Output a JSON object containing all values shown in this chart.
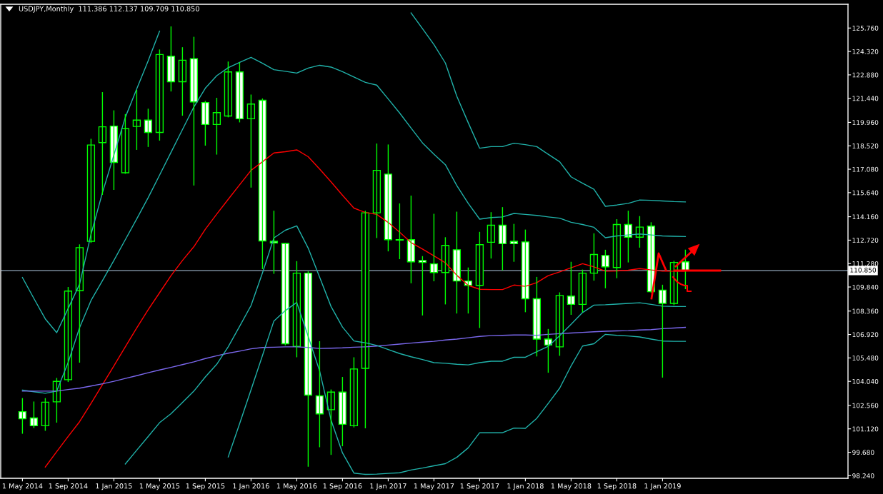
{
  "chart_data": {
    "type": "candlestick",
    "title": "USDJPY,Monthly  111.386 112.137 109.709 110.850",
    "categories": [
      "1 May 2014",
      null,
      null,
      null,
      "1 Sep 2014",
      null,
      null,
      null,
      "1 Jan 2015",
      null,
      null,
      null,
      "1 May 2015",
      null,
      null,
      null,
      "1 Sep 2015",
      null,
      null,
      null,
      "1 Jan 2016",
      null,
      null,
      null,
      "1 May 2016",
      null,
      null,
      null,
      "1 Sep 2016",
      null,
      null,
      null,
      "1 Jan 2017",
      null,
      null,
      null,
      "1 May 2017",
      null,
      null,
      null,
      "1 Sep 2017",
      null,
      null,
      null,
      "1 Jan 2018",
      null,
      null,
      null,
      "1 May 2018",
      null,
      null,
      null,
      "1 Sep 2018",
      null,
      null,
      null,
      "1 Jan 2019",
      null,
      null
    ],
    "color": "#00ff00",
    "ohlc": [
      [
        102.18,
        103.01,
        100.82,
        101.74
      ],
      [
        101.79,
        102.8,
        101.17,
        101.31
      ],
      [
        101.31,
        103.01,
        101.0,
        102.76
      ],
      [
        102.78,
        104.25,
        101.5,
        104.04
      ],
      [
        104.14,
        109.84,
        104.0,
        109.59
      ],
      [
        109.61,
        112.46,
        105.19,
        112.26
      ],
      [
        112.65,
        118.95,
        112.55,
        118.57
      ],
      [
        118.72,
        121.82,
        115.5,
        119.69
      ],
      [
        119.73,
        120.7,
        115.81,
        117.5
      ],
      [
        116.86,
        120.47,
        116.8,
        119.57
      ],
      [
        119.71,
        121.96,
        118.27,
        120.1
      ],
      [
        120.1,
        120.8,
        118.45,
        119.34
      ],
      [
        119.34,
        124.44,
        118.84,
        124.13
      ],
      [
        124.03,
        125.86,
        121.86,
        122.46
      ],
      [
        122.46,
        124.58,
        120.37,
        123.78
      ],
      [
        123.88,
        125.22,
        116.08,
        121.22
      ],
      [
        121.18,
        121.28,
        118.53,
        119.83
      ],
      [
        119.83,
        121.47,
        117.98,
        120.56
      ],
      [
        120.35,
        123.7,
        120.27,
        123.06
      ],
      [
        123.06,
        123.65,
        119.96,
        120.18
      ],
      [
        120.18,
        121.67,
        115.95,
        121.09
      ],
      [
        121.32,
        121.43,
        110.94,
        112.67
      ],
      [
        112.65,
        114.53,
        110.65,
        112.55
      ],
      [
        112.52,
        112.55,
        106.25,
        106.35
      ],
      [
        106.19,
        111.43,
        105.52,
        110.69
      ],
      [
        110.69,
        110.81,
        98.79,
        103.19
      ],
      [
        103.15,
        106.51,
        99.99,
        102.04
      ],
      [
        102.3,
        103.54,
        99.52,
        103.38
      ],
      [
        103.38,
        104.31,
        100.05,
        101.4
      ],
      [
        101.31,
        105.52,
        101.21,
        104.8
      ],
      [
        104.84,
        114.53,
        101.15,
        114.4
      ],
      [
        114.4,
        118.66,
        112.85,
        117.01
      ],
      [
        116.78,
        118.6,
        112.03,
        112.75
      ],
      [
        112.75,
        114.98,
        111.55,
        112.72
      ],
      [
        112.75,
        115.46,
        110.07,
        111.39
      ],
      [
        111.47,
        111.74,
        108.09,
        111.35
      ],
      [
        111.26,
        114.34,
        110.19,
        110.73
      ],
      [
        110.73,
        112.9,
        108.77,
        112.4
      ],
      [
        112.13,
        114.47,
        108.21,
        110.21
      ],
      [
        110.21,
        111.04,
        108.21,
        109.94
      ],
      [
        109.94,
        113.23,
        107.32,
        112.44
      ],
      [
        112.59,
        114.44,
        111.59,
        113.64
      ],
      [
        113.64,
        114.75,
        110.87,
        112.5
      ],
      [
        112.65,
        113.72,
        111.39,
        112.5
      ],
      [
        112.61,
        113.37,
        108.29,
        109.12
      ],
      [
        109.12,
        110.46,
        105.57,
        106.64
      ],
      [
        106.64,
        107.26,
        104.57,
        106.27
      ],
      [
        106.16,
        109.51,
        105.61,
        109.32
      ],
      [
        109.28,
        111.39,
        108.13,
        108.77
      ],
      [
        108.77,
        110.91,
        108.29,
        110.69
      ],
      [
        110.69,
        113.14,
        110.23,
        111.84
      ],
      [
        111.78,
        112.13,
        109.76,
        111.08
      ],
      [
        111.04,
        114.01,
        110.38,
        113.68
      ],
      [
        113.68,
        114.53,
        111.35,
        112.9
      ],
      [
        112.9,
        114.2,
        112.26,
        113.52
      ],
      [
        113.58,
        113.82,
        109.5,
        109.55
      ],
      [
        109.65,
        109.98,
        104.27,
        108.83
      ],
      [
        108.83,
        111.45,
        108.72,
        111.35
      ],
      [
        111.386,
        112.137,
        109.709,
        110.85
      ]
    ],
    "series": [
      {
        "type": "line",
        "color": "#20b2aa",
        "values": [
          110.42,
          109.14,
          107.88,
          107.03,
          108.52,
          110.01,
          113.08,
          115.64,
          117.95,
          120.27,
          122.02,
          123.74,
          125.57,
          null,
          null,
          null,
          null,
          null,
          null,
          null,
          null,
          null,
          null,
          null,
          null,
          null,
          null,
          null,
          null,
          null,
          null,
          null,
          null,
          null,
          126.69,
          125.72,
          124.75,
          123.61,
          121.57,
          119.94,
          118.37,
          118.47,
          118.47,
          118.68,
          118.59,
          118.47,
          118.0,
          117.54,
          116.61,
          116.22,
          115.85,
          114.8,
          114.88,
          114.98,
          115.19,
          115.17,
          115.13,
          115.09,
          115.07
        ]
      },
      {
        "type": "line",
        "color": "#20b2aa",
        "values": [
          103.5,
          103.4,
          103.31,
          103.44,
          105.2,
          107.34,
          109.01,
          110.23,
          111.47,
          112.75,
          114.03,
          115.33,
          116.72,
          118.12,
          119.52,
          120.91,
          122.06,
          122.83,
          123.32,
          123.65,
          123.96,
          123.59,
          123.2,
          123.1,
          122.99,
          123.3,
          123.47,
          123.36,
          123.08,
          122.75,
          122.42,
          122.25,
          121.4,
          120.54,
          119.61,
          118.7,
          118.0,
          117.36,
          116.08,
          114.98,
          114.01,
          114.11,
          114.15,
          114.36,
          114.3,
          114.24,
          114.15,
          114.07,
          113.82,
          113.68,
          113.51,
          112.87,
          112.98,
          113.04,
          113.1,
          113.04,
          112.98,
          112.96,
          112.94
        ]
      },
      {
        "type": "line",
        "color": "#ff0000",
        "values": [
          null,
          null,
          98.77,
          99.72,
          100.65,
          101.56,
          102.68,
          103.83,
          104.99,
          106.16,
          107.32,
          108.44,
          109.49,
          110.54,
          111.47,
          112.32,
          113.39,
          114.32,
          115.23,
          116.12,
          117.01,
          117.54,
          118.08,
          118.16,
          118.27,
          117.85,
          117.09,
          116.3,
          115.48,
          114.69,
          114.42,
          114.3,
          113.81,
          113.21,
          112.57,
          112.17,
          111.76,
          111.33,
          110.56,
          109.94,
          109.7,
          109.68,
          109.68,
          109.96,
          109.88,
          110.11,
          110.54,
          110.77,
          111.02,
          111.27,
          111.08,
          110.81,
          110.83,
          110.87,
          110.97,
          110.89,
          110.81,
          110.81,
          110.81
        ]
      },
      {
        "type": "line",
        "color": "#7b68ee",
        "values": [
          103.44,
          103.44,
          103.44,
          103.44,
          103.54,
          103.62,
          103.75,
          103.89,
          104.04,
          104.22,
          104.39,
          104.57,
          104.74,
          104.9,
          105.07,
          105.24,
          105.44,
          105.61,
          105.77,
          105.9,
          106.04,
          106.12,
          106.14,
          106.16,
          106.16,
          106.12,
          106.06,
          106.08,
          106.1,
          106.14,
          106.16,
          106.21,
          106.27,
          106.33,
          106.39,
          106.45,
          106.5,
          106.58,
          106.64,
          106.72,
          106.8,
          106.85,
          106.87,
          106.89,
          106.89,
          106.87,
          106.93,
          106.97,
          107.01,
          107.05,
          107.09,
          107.12,
          107.14,
          107.16,
          107.2,
          107.22,
          107.28,
          107.32,
          107.36
        ]
      },
      {
        "type": "line",
        "color": "#20b2aa",
        "values": [
          null,
          null,
          null,
          null,
          null,
          null,
          null,
          null,
          null,
          98.96,
          99.81,
          100.65,
          101.5,
          102.05,
          102.74,
          103.44,
          104.31,
          105.09,
          106.16,
          107.42,
          108.7,
          110.71,
          112.86,
          113.33,
          113.6,
          112.23,
          110.44,
          108.64,
          107.38,
          106.52,
          106.41,
          106.25,
          106.0,
          105.75,
          105.55,
          105.38,
          105.19,
          105.15,
          105.09,
          105.05,
          105.19,
          105.28,
          105.28,
          105.52,
          105.52,
          105.86,
          106.19,
          106.85,
          107.55,
          108.27,
          108.73,
          108.75,
          108.79,
          108.83,
          108.87,
          108.77,
          108.66,
          108.64,
          108.64
        ]
      },
      {
        "type": "line",
        "color": "#20b2aa",
        "values": [
          null,
          null,
          null,
          null,
          null,
          null,
          null,
          null,
          null,
          null,
          null,
          null,
          null,
          null,
          null,
          null,
          null,
          null,
          99.39,
          101.44,
          103.52,
          105.63,
          107.75,
          108.39,
          108.89,
          106.8,
          104.68,
          101.66,
          99.64,
          98.4,
          98.32,
          98.34,
          98.38,
          98.42,
          98.59,
          98.71,
          98.85,
          98.98,
          99.37,
          99.95,
          100.88,
          100.88,
          100.88,
          101.17,
          101.15,
          101.77,
          102.68,
          103.62,
          104.99,
          106.21,
          106.35,
          106.93,
          106.87,
          106.83,
          106.77,
          106.64,
          106.52,
          106.5,
          106.5
        ]
      }
    ],
    "ylim": [
      98.08,
      127.22
    ],
    "yticks": [
      {
        "value": 98.24,
        "label": "98.240"
      },
      {
        "value": 99.68,
        "label": "99.680"
      },
      {
        "value": 101.12,
        "label": "101.120"
      },
      {
        "value": 102.56,
        "label": "102.560"
      },
      {
        "value": 104.04,
        "label": "104.040"
      },
      {
        "value": 105.48,
        "label": "105.480"
      },
      {
        "value": 106.92,
        "label": "106.920"
      },
      {
        "value": 108.36,
        "label": "108.360"
      },
      {
        "value": 109.84,
        "label": "109.840"
      },
      {
        "value": 111.28,
        "label": "111.280"
      },
      {
        "value": 112.72,
        "label": "112.720"
      },
      {
        "value": 114.16,
        "label": "114.160"
      },
      {
        "value": 115.64,
        "label": "115.640"
      },
      {
        "value": 117.08,
        "label": "117.080"
      },
      {
        "value": 118.52,
        "label": "118.520"
      },
      {
        "value": 119.96,
        "label": "119.960"
      },
      {
        "value": 121.44,
        "label": "121.440"
      },
      {
        "value": 122.88,
        "label": "122.880"
      },
      {
        "value": 124.32,
        "label": "124.320"
      },
      {
        "value": 125.76,
        "label": "125.760"
      }
    ],
    "ref_lines": [
      {
        "axis": "y",
        "value": 110.85,
        "label": "110.850",
        "color": "#778899"
      }
    ],
    "grid": false,
    "legend": false
  }
}
